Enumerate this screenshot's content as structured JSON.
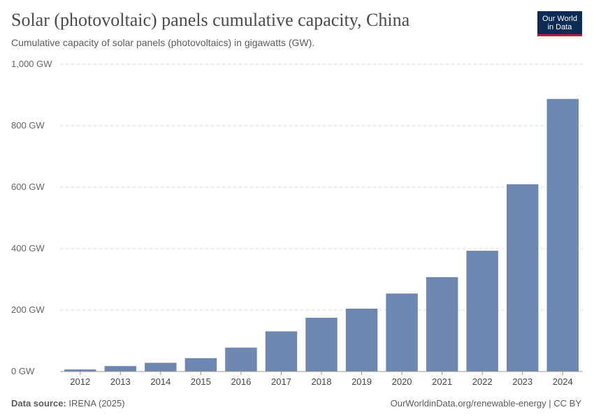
{
  "header": {
    "title": "Solar (photovoltaic) panels cumulative capacity, China",
    "subtitle": "Cumulative capacity of solar panels (photovoltaics) in gigawatts (GW).",
    "logo_line1": "Our World",
    "logo_line2": "in Data"
  },
  "footer": {
    "source_label": "Data source:",
    "source_value": "IRENA (2025)",
    "url": "OurWorldinData.org/renewable-energy | CC BY"
  },
  "chart_data": {
    "type": "bar",
    "title": "Solar (photovoltaic) panels cumulative capacity, China",
    "xlabel": "",
    "ylabel": "GW",
    "ylim": [
      0,
      1000
    ],
    "yticks": [
      {
        "value": 0,
        "label": "0 GW"
      },
      {
        "value": 200,
        "label": "200 GW"
      },
      {
        "value": 400,
        "label": "400 GW"
      },
      {
        "value": 600,
        "label": "600 GW"
      },
      {
        "value": 800,
        "label": "800 GW"
      },
      {
        "value": 1000,
        "label": "1,000 GW"
      }
    ],
    "categories": [
      "2012",
      "2013",
      "2014",
      "2015",
      "2016",
      "2017",
      "2018",
      "2019",
      "2020",
      "2021",
      "2022",
      "2023",
      "2024"
    ],
    "values": [
      6.7,
      17.7,
      28.4,
      43.5,
      77.8,
      130.8,
      175.0,
      204.6,
      253.8,
      307.2,
      393.0,
      609.5,
      887.0
    ],
    "grid": true,
    "color": "#6d87b0"
  }
}
